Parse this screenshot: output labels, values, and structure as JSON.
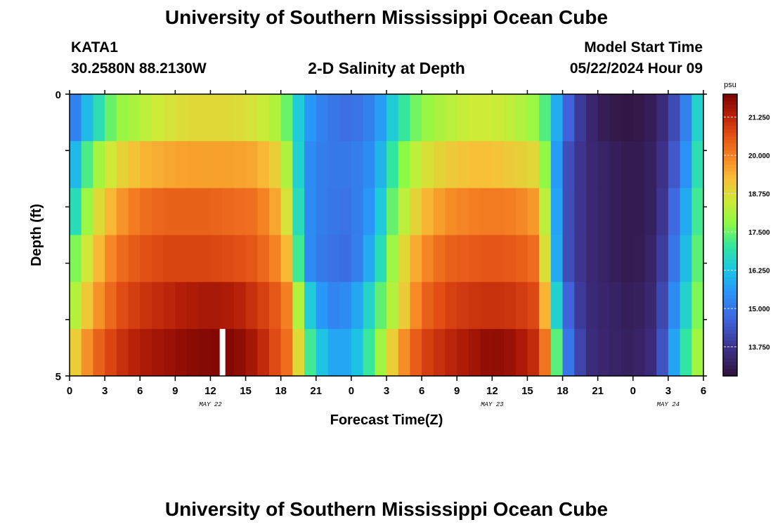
{
  "page": {
    "title": "University of Southern Mississippi Ocean Cube",
    "station_id": "KATA1",
    "coordinates": "30.2580N  88.2130W",
    "chart_title": "2-D Salinity at Depth",
    "start_label": "Model Start Time",
    "start_value": "05/22/2024 Hour 09",
    "footer_title": "University of Southern Mississippi Ocean Cube"
  },
  "chart_data": {
    "type": "heatmap",
    "title": "2-D Salinity at Depth",
    "xlabel": "Forecast Time(Z)",
    "ylabel": "Depth (ft)",
    "x_start": "2024-05-22T00Z",
    "x_range_hours": [
      0,
      54
    ],
    "x_tick_hours": [
      0,
      3,
      6,
      9,
      12,
      15,
      18,
      21,
      24,
      27,
      30,
      33,
      36,
      39,
      42,
      45,
      48,
      51,
      54
    ],
    "x_tick_labels": [
      "0",
      "3",
      "6",
      "9",
      "12",
      "15",
      "18",
      "21",
      "0",
      "3",
      "6",
      "9",
      "12",
      "15",
      "18",
      "21",
      "0",
      "3",
      "6"
    ],
    "date_labels": [
      {
        "hour": 12,
        "label": "MAY 22"
      },
      {
        "hour": 36,
        "label": "MAY 23"
      },
      {
        "hour": 51,
        "label": "MAY 24"
      }
    ],
    "y_range": [
      0,
      5
    ],
    "y_tick_labels": [
      "0",
      "5"
    ],
    "depth_layers": [
      0,
      1,
      2,
      3,
      4,
      5
    ],
    "units": "psu",
    "colorbar": {
      "min": 12.8,
      "max": 22.0,
      "ticks": [
        21.25,
        20.0,
        18.75,
        17.5,
        16.25,
        15.0,
        13.75
      ],
      "tick_labels": [
        "21.250",
        "20.000",
        "18.750",
        "17.500",
        "16.250",
        "15.000",
        "13.750"
      ]
    },
    "model_start_marker_hour": 13,
    "time_hours": [
      0,
      2,
      4,
      6,
      8,
      10,
      12,
      14,
      16,
      18,
      19,
      20,
      22,
      24,
      26,
      28,
      30,
      32,
      34,
      36,
      38,
      40,
      41,
      42,
      44,
      46,
      48,
      50,
      52,
      54
    ],
    "salinity": [
      [
        14.8,
        16.5,
        17.8,
        18.2,
        18.6,
        18.8,
        18.8,
        18.8,
        18.6,
        18.0,
        17.0,
        15.8,
        15.0,
        14.8,
        15.3,
        16.8,
        17.8,
        18.2,
        18.5,
        18.5,
        18.3,
        17.8,
        16.8,
        15.0,
        13.5,
        13.0,
        12.9,
        13.2,
        14.5,
        17.2
      ],
      [
        15.5,
        17.8,
        18.8,
        19.3,
        19.5,
        19.6,
        19.6,
        19.6,
        19.5,
        18.8,
        17.5,
        15.5,
        15.0,
        15.0,
        15.5,
        17.5,
        18.6,
        19.0,
        19.2,
        19.2,
        19.0,
        18.8,
        16.8,
        14.5,
        13.5,
        13.2,
        13.0,
        13.3,
        14.8,
        17.5
      ],
      [
        16.2,
        18.5,
        19.6,
        20.2,
        20.4,
        20.4,
        20.4,
        20.3,
        20.2,
        19.3,
        18.0,
        15.5,
        15.0,
        14.9,
        15.8,
        18.0,
        19.2,
        19.8,
        20.0,
        20.1,
        20.0,
        19.6,
        17.0,
        14.5,
        13.5,
        13.2,
        13.0,
        13.3,
        15.2,
        17.8
      ],
      [
        17.2,
        19.0,
        20.2,
        20.6,
        20.8,
        20.8,
        20.8,
        20.7,
        20.5,
        19.8,
        18.8,
        15.5,
        14.9,
        14.8,
        16.2,
        18.5,
        19.8,
        20.4,
        20.5,
        20.6,
        20.5,
        20.2,
        17.2,
        14.5,
        13.5,
        13.2,
        13.0,
        13.4,
        15.5,
        18.0
      ],
      [
        17.8,
        19.5,
        20.6,
        21.0,
        21.2,
        21.4,
        21.5,
        21.4,
        21.0,
        20.4,
        19.6,
        16.8,
        15.2,
        15.4,
        17.0,
        18.6,
        20.3,
        20.8,
        21.0,
        21.1,
        21.0,
        20.7,
        18.0,
        15.0,
        13.5,
        13.3,
        13.1,
        13.5,
        16.0,
        18.2
      ],
      [
        18.6,
        20.2,
        21.0,
        21.4,
        21.6,
        21.8,
        21.9,
        21.9,
        21.4,
        20.5,
        20.0,
        17.6,
        15.8,
        15.8,
        17.5,
        19.5,
        20.8,
        21.2,
        21.5,
        21.8,
        21.6,
        21.0,
        19.3,
        15.4,
        13.6,
        13.3,
        13.2,
        13.6,
        16.5,
        18.5
      ]
    ]
  },
  "colors": {
    "text": "#000000",
    "background": "#ffffff",
    "marker": "#ffffff"
  }
}
